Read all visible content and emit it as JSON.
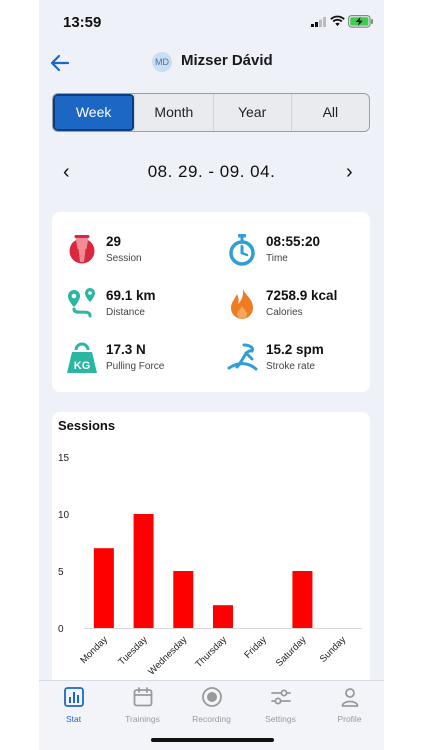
{
  "status_bar": {
    "time": "13:59"
  },
  "header": {
    "avatar_initials": "MD",
    "user_name": "Mizser Dávid"
  },
  "period_tabs": [
    {
      "label": "Week",
      "active": true
    },
    {
      "label": "Month",
      "active": false
    },
    {
      "label": "Year",
      "active": false
    },
    {
      "label": "All",
      "active": false
    }
  ],
  "date_range": {
    "prev": "‹",
    "text": "08. 29. - 09. 04.",
    "next": "›"
  },
  "stats": [
    {
      "value": "29",
      "label": "Session",
      "icon": "ergometer-seat-icon"
    },
    {
      "value": "08:55:20",
      "label": "Time",
      "icon": "stopwatch-icon"
    },
    {
      "value": "69.1 km",
      "label": "Distance",
      "icon": "route-pin-icon"
    },
    {
      "value": "7258.9 kcal",
      "label": "Calories",
      "icon": "flame-icon"
    },
    {
      "value": "17.3 N",
      "label": "Pulling Force",
      "icon": "kettlebell-kg-icon"
    },
    {
      "value": "15.2 spm",
      "label": "Stroke rate",
      "icon": "rowing-stroke-icon"
    }
  ],
  "sessions_chart": {
    "title": "Sessions"
  },
  "chart_data": {
    "type": "bar",
    "title": "Sessions",
    "categories": [
      "Monday",
      "Tuesday",
      "Wednesday",
      "Thursday",
      "Friday",
      "Saturday",
      "Sunday"
    ],
    "values": [
      7,
      10,
      5,
      2,
      0,
      5,
      0
    ],
    "ylim": [
      0,
      15
    ],
    "yticks": [
      0,
      5,
      10,
      15
    ],
    "color": "#ff0000",
    "grid": false,
    "legend": "none"
  },
  "tabbar": [
    {
      "label": "Stat",
      "icon": "bar-chart-icon",
      "active": true
    },
    {
      "label": "Trainings",
      "icon": "calendar-icon",
      "active": false
    },
    {
      "label": "Recording",
      "icon": "record-icon",
      "active": false
    },
    {
      "label": "Settings",
      "icon": "sliders-icon",
      "active": false
    },
    {
      "label": "Profile",
      "icon": "person-icon",
      "active": false
    }
  ],
  "colors": {
    "accent": "#1d67c4",
    "bar": "#ff0000",
    "icon_red": "#d8273e",
    "icon_teal": "#2ab6a3",
    "icon_blue": "#2f9ed8",
    "icon_orange": "#ef7b22"
  }
}
